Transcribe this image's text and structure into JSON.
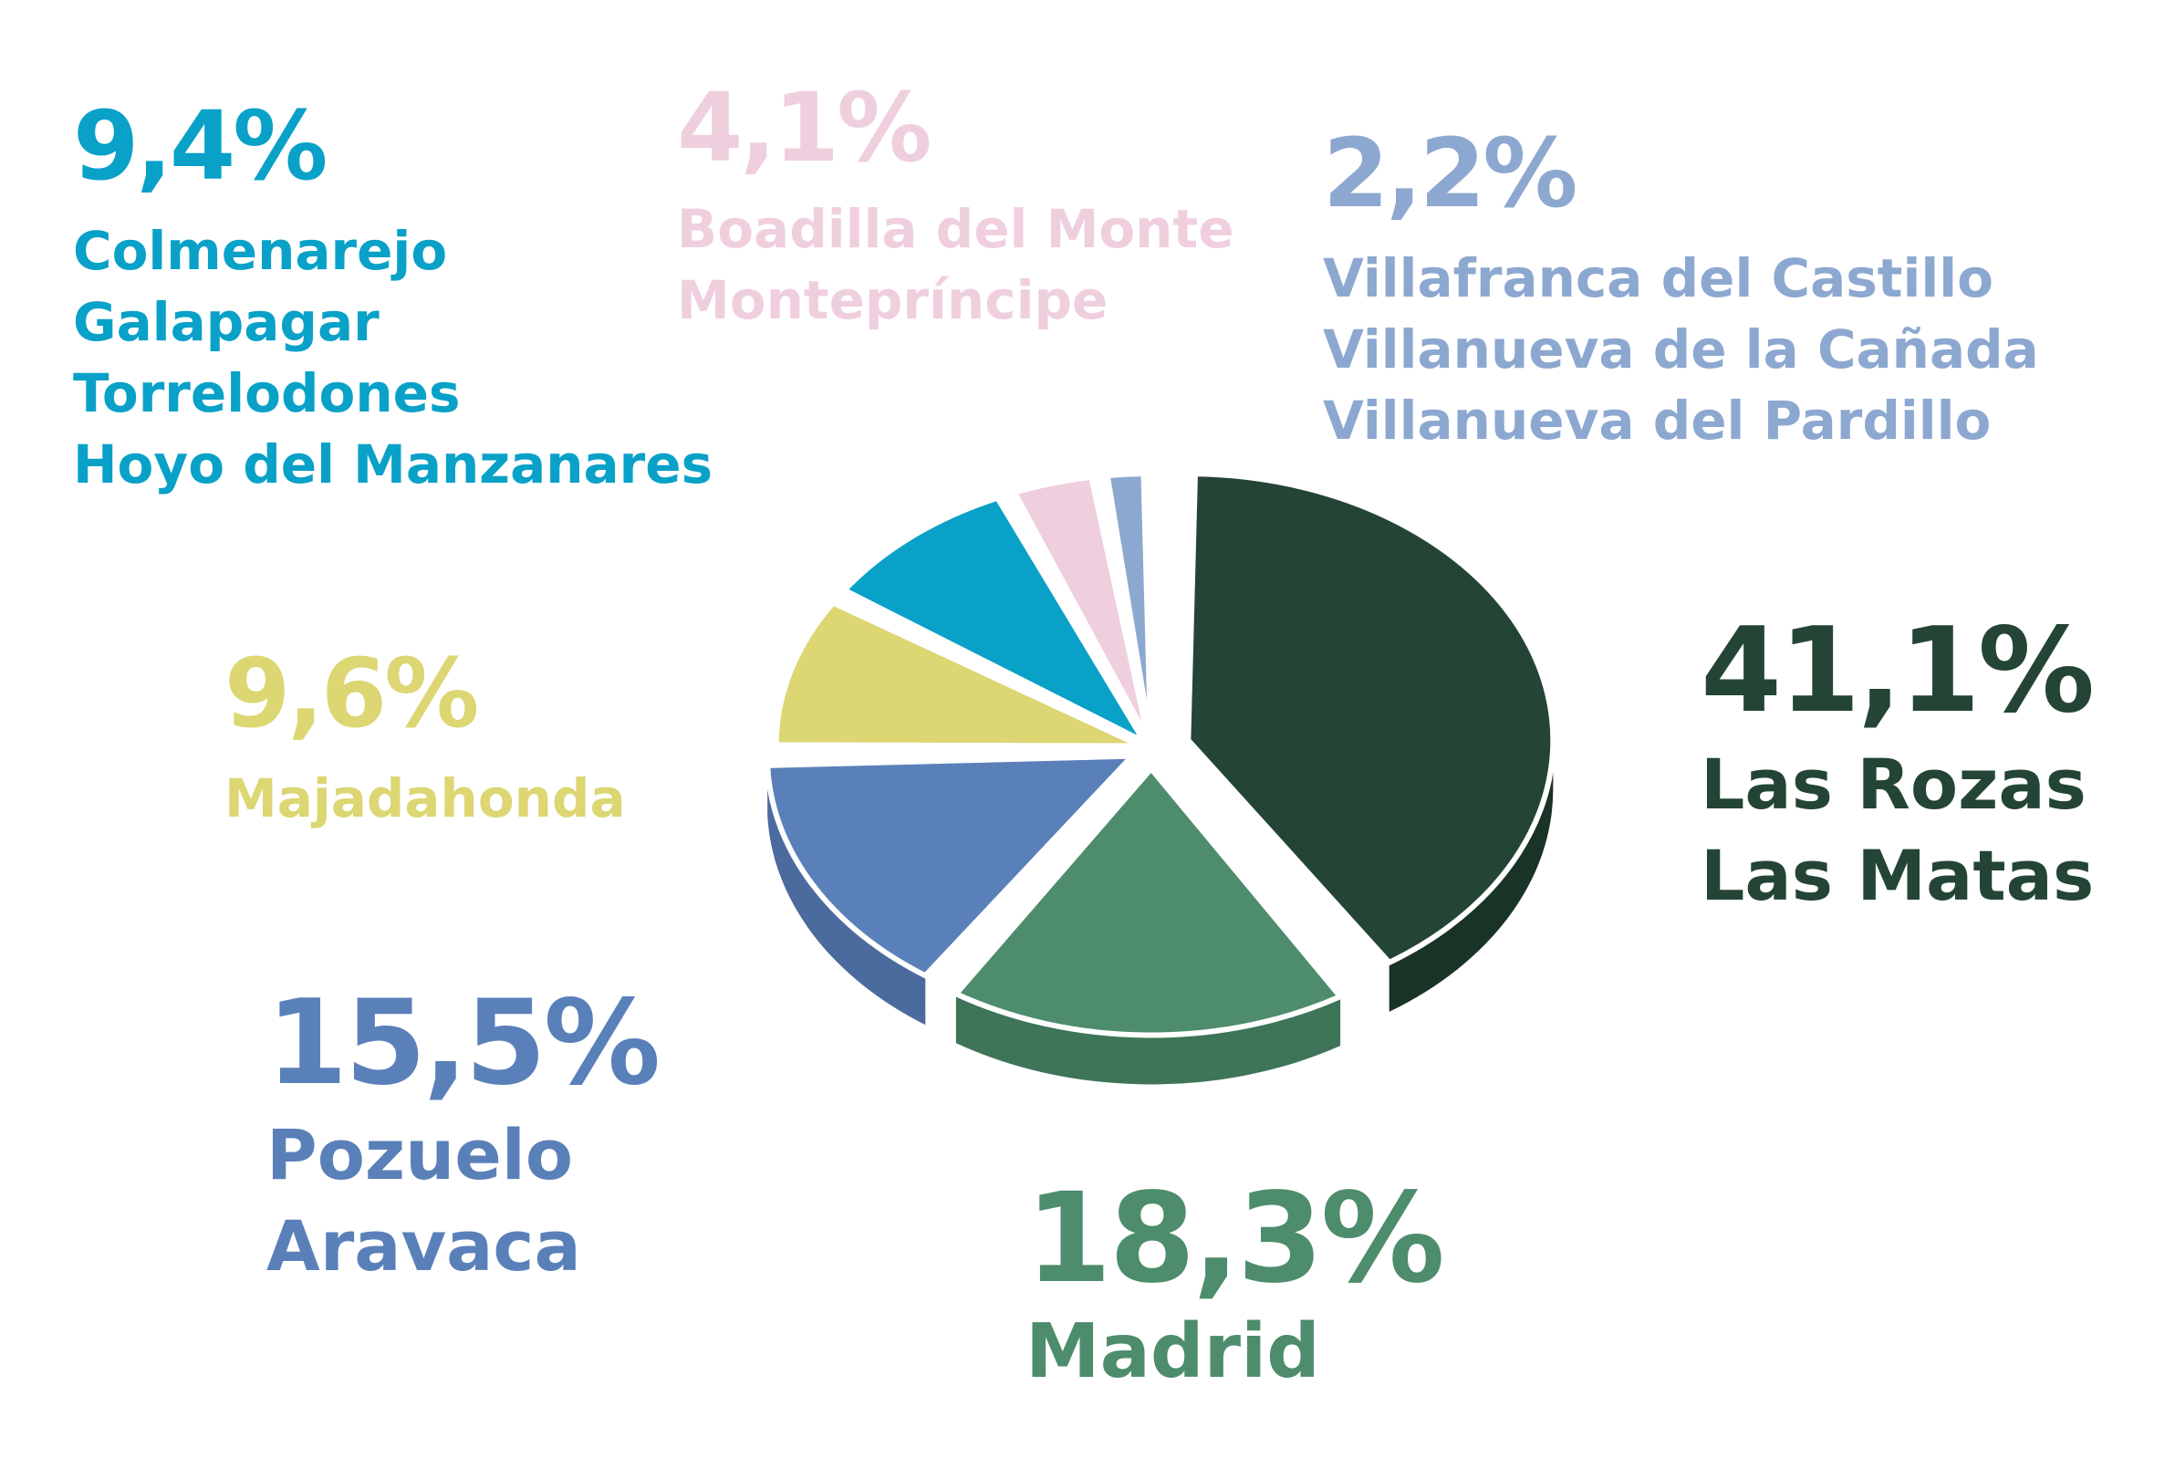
{
  "chart_data": {
    "type": "pie",
    "title": "",
    "series": [
      {
        "name": "",
        "slices": [
          {
            "key": "rozas",
            "percent_label": "41,1%",
            "value": 41.1,
            "labels": [
              "Las Rozas",
              "Las Matas"
            ],
            "color": "#244535",
            "side_color": "#1a3327"
          },
          {
            "key": "madrid",
            "percent_label": "18,3%",
            "value": 18.3,
            "labels": [
              "Madrid"
            ],
            "color": "#4d8c6c",
            "side_color": "#3e7458"
          },
          {
            "key": "pozuelo",
            "percent_label": "15,5%",
            "value": 15.5,
            "labels": [
              "Pozuelo",
              "Aravaca"
            ],
            "color": "#5a80b9",
            "side_color": "#4b6a9d"
          },
          {
            "key": "majadahonda",
            "percent_label": "9,6%",
            "value": 9.6,
            "labels": [
              "Majadahonda"
            ],
            "color": "#dcd673",
            "side_color": "#c2bc5f"
          },
          {
            "key": "colmenarejo",
            "percent_label": "9,4%",
            "value": 9.4,
            "labels": [
              "Colmenarejo",
              "Galapagar",
              "Torrelodones",
              "Hoyo del Manzanares"
            ],
            "color": "#09a1c8",
            "side_color": "#0888a8"
          },
          {
            "key": "boadilla",
            "percent_label": "4,1%",
            "value": 4.1,
            "labels": [
              "Boadilla del Monte",
              "Montepríncipe"
            ],
            "color": "#efcfde",
            "side_color": "#dcbac9"
          },
          {
            "key": "villafranca",
            "percent_label": "2,2%",
            "value": 2.2,
            "labels": [
              "Villafranca del Castillo",
              "Villanueva de la Cañada",
              "Villanueva del Pardillo"
            ],
            "color": "#8da8d0",
            "side_color": "#7891b8"
          }
        ]
      }
    ],
    "legend": "labels placed around the pie"
  }
}
